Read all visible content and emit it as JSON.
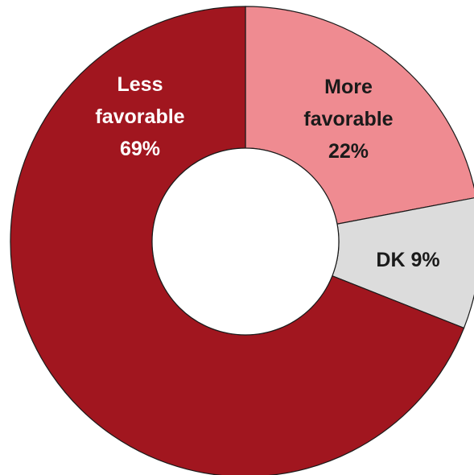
{
  "chart_data": {
    "type": "pie",
    "donut": true,
    "title": "",
    "start_angle_deg": 0,
    "direction": "clockwise",
    "slices": [
      {
        "key": "more",
        "label_lines": [
          "More",
          "favorable",
          "22%"
        ],
        "value": 22,
        "color": "#ef8b91",
        "label_color": "#1a1a1a"
      },
      {
        "key": "dk",
        "label_lines": [
          "DK 9%"
        ],
        "value": 9,
        "color": "#dcdcdc",
        "label_color": "#1a1a1a"
      },
      {
        "key": "less",
        "label_lines": [
          "Less",
          "favorable",
          "69%"
        ],
        "value": 69,
        "color": "#a1161f",
        "label_color": "#ffffff"
      }
    ]
  }
}
